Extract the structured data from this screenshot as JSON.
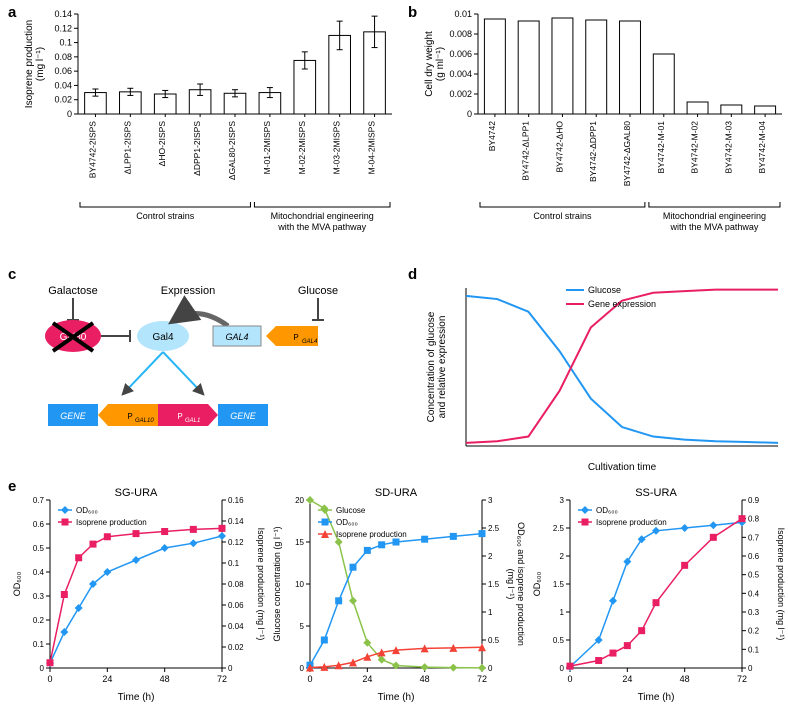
{
  "panel_labels": {
    "a": "a",
    "b": "b",
    "c": "c",
    "d": "d",
    "e": "e"
  },
  "colors": {
    "black": "#000000",
    "white": "#ffffff",
    "pink": "#e91e63",
    "blue_line": "#2196f3",
    "green": "#8bc34a",
    "red": "#f44336",
    "orange": "#ff9800",
    "light_blue": "#b3e5fc",
    "gene_blue": "#2196f3",
    "gal80": "#e91e63"
  },
  "chartA": {
    "type": "bar",
    "ylabel": "Isoprene production\n(mg l⁻¹)",
    "ylim": [
      0,
      0.14
    ],
    "ytick_step": 0.02,
    "categories": [
      "BY4742-2ISPS",
      "ΔLPP1-2ISPS",
      "ΔHO-2ISPS",
      "ΔDPP1-2ISPS",
      "ΔGAL80-2ISPS",
      "M-01-2MISPS",
      "M-02-2MISPS",
      "M-03-2MISPS",
      "M-04-2MISPS"
    ],
    "values": [
      0.03,
      0.031,
      0.028,
      0.034,
      0.029,
      0.03,
      0.075,
      0.11,
      0.115
    ],
    "errors": [
      0.005,
      0.005,
      0.005,
      0.008,
      0.005,
      0.007,
      0.012,
      0.02,
      0.022
    ],
    "bar_color": "#ffffff",
    "bar_stroke": "#000000",
    "groups": [
      {
        "label": "Control strains",
        "range": [
          0,
          5
        ]
      },
      {
        "label": "Mitochondrial engineering\nwith the MVA pathway",
        "range": [
          5,
          9
        ]
      }
    ]
  },
  "chartB": {
    "type": "bar",
    "ylabel": "Cell dry weight\n(g ml⁻¹)",
    "ylim": [
      0,
      0.01
    ],
    "ytick_step": 0.002,
    "categories": [
      "BY4742",
      "BY4742-ΔLPP1",
      "BY4742-ΔHO",
      "BY4742-ΔDPP1",
      "BY4742-ΔGAL80",
      "BY4742-M-01",
      "BY4742-M-02",
      "BY4742-M-03",
      "BY4742-M-04"
    ],
    "values": [
      0.0095,
      0.0093,
      0.0096,
      0.0094,
      0.0093,
      0.006,
      0.0012,
      0.0009,
      0.0008
    ],
    "errors": [
      0,
      0,
      0,
      0,
      0,
      0,
      0,
      0,
      0
    ],
    "bar_color": "#ffffff",
    "bar_stroke": "#000000",
    "groups": [
      {
        "label": "Control strains",
        "range": [
          0,
          5
        ]
      },
      {
        "label": "Mitochondrial engineering\nwith the MVA pathway",
        "range": [
          5,
          9
        ]
      }
    ]
  },
  "diagramC": {
    "texts": {
      "galactose": "Galactose",
      "expression": "Expression",
      "glucose": "Glucose",
      "gal80": "Gal80",
      "gal4": "Gal4",
      "GAL4": "GAL4",
      "PGAL4": "P_GAL4",
      "gene": "GENE",
      "pgal10": "P_GAL10",
      "pgal1": "P_GAL1"
    }
  },
  "chartD": {
    "type": "line",
    "xlabel": "Cultivation time",
    "ylabel": "Concentration of glucose\nand relative expression",
    "legend": [
      {
        "label": "Glucose",
        "color": "#2196f3"
      },
      {
        "label": "Gene expression",
        "color": "#e91e63"
      }
    ],
    "x": [
      0,
      1,
      2,
      3,
      4,
      5,
      6,
      7,
      8,
      9,
      10
    ],
    "glucose": [
      0.95,
      0.93,
      0.85,
      0.6,
      0.3,
      0.12,
      0.06,
      0.04,
      0.03,
      0.025,
      0.02
    ],
    "expression": [
      0.02,
      0.03,
      0.06,
      0.35,
      0.75,
      0.92,
      0.97,
      0.98,
      0.99,
      0.99,
      0.99
    ],
    "xlim": [
      0,
      10
    ],
    "ylim": [
      0,
      1
    ]
  },
  "chartsE": {
    "xlabel": "Time (h)",
    "xlim": [
      0,
      72
    ],
    "xtick_step": 24,
    "panels": [
      {
        "title": "SG-URA",
        "left": {
          "label": "OD₆₀₀",
          "lim": [
            0,
            0.7
          ],
          "step": 0.1,
          "color": "#2196f3",
          "marker": "diamond",
          "x": [
            0,
            6,
            12,
            18,
            24,
            36,
            48,
            60,
            72
          ],
          "y": [
            0.02,
            0.15,
            0.25,
            0.35,
            0.4,
            0.45,
            0.5,
            0.52,
            0.55
          ]
        },
        "right": {
          "label": "Isoprene production (mg l⁻¹)",
          "lim": [
            0,
            0.16
          ],
          "step": 0.02,
          "color": "#e91e63",
          "marker": "square",
          "x": [
            0,
            6,
            12,
            18,
            24,
            36,
            48,
            60,
            72
          ],
          "y": [
            0.005,
            0.07,
            0.105,
            0.118,
            0.125,
            0.128,
            0.13,
            0.132,
            0.133
          ]
        },
        "legend": [
          {
            "label": "OD₆₀₀",
            "color": "#2196f3"
          },
          {
            "label": "Isoprene production",
            "color": "#e91e63"
          }
        ]
      },
      {
        "title": "SD-URA",
        "left": {
          "label": "Glucose concentration (g l⁻¹)",
          "lim": [
            0,
            20
          ],
          "step": 5,
          "color": "#8bc34a",
          "marker": "diamond",
          "x": [
            0,
            6,
            12,
            18,
            24,
            30,
            36,
            48,
            60,
            72
          ],
          "y": [
            20,
            19,
            15,
            8,
            3,
            1,
            0.3,
            0.1,
            0.05,
            0.02
          ]
        },
        "right": {
          "label": "OD₆₀₀ and isoprene production\n(mg l⁻¹)",
          "lim": [
            0,
            3
          ],
          "step": 0.5,
          "series": [
            {
              "color": "#2196f3",
              "marker": "square",
              "x": [
                0,
                6,
                12,
                18,
                24,
                30,
                36,
                48,
                60,
                72
              ],
              "y": [
                0.05,
                0.5,
                1.2,
                1.8,
                2.1,
                2.2,
                2.25,
                2.3,
                2.35,
                2.4
              ]
            },
            {
              "color": "#f44336",
              "marker": "triangle",
              "x": [
                0,
                6,
                12,
                18,
                24,
                30,
                36,
                48,
                60,
                72
              ],
              "y": [
                0.01,
                0.02,
                0.05,
                0.1,
                0.2,
                0.28,
                0.32,
                0.35,
                0.36,
                0.37
              ]
            }
          ]
        },
        "legend": [
          {
            "label": "Glucose",
            "color": "#8bc34a"
          },
          {
            "label": "OD₆₀₀",
            "color": "#2196f3"
          },
          {
            "label": "Isoprene production",
            "color": "#f44336"
          }
        ]
      },
      {
        "title": "SS-URA",
        "left": {
          "label": "OD₆₀₀",
          "lim": [
            0,
            3
          ],
          "step": 0.5,
          "color": "#2196f3",
          "marker": "diamond",
          "x": [
            0,
            12,
            18,
            24,
            30,
            36,
            48,
            60,
            72
          ],
          "y": [
            0.02,
            0.5,
            1.2,
            1.9,
            2.3,
            2.45,
            2.5,
            2.55,
            2.6
          ]
        },
        "right": {
          "label": "Isoprene production (mg l⁻¹)",
          "lim": [
            0,
            0.9
          ],
          "step": 0.1,
          "color": "#e91e63",
          "marker": "square",
          "x": [
            0,
            12,
            18,
            24,
            30,
            36,
            48,
            60,
            72
          ],
          "y": [
            0.01,
            0.04,
            0.08,
            0.12,
            0.2,
            0.35,
            0.55,
            0.7,
            0.8
          ]
        },
        "legend": [
          {
            "label": "OD₆₀₀",
            "color": "#2196f3"
          },
          {
            "label": "Isoprene production",
            "color": "#e91e63"
          }
        ]
      }
    ]
  }
}
